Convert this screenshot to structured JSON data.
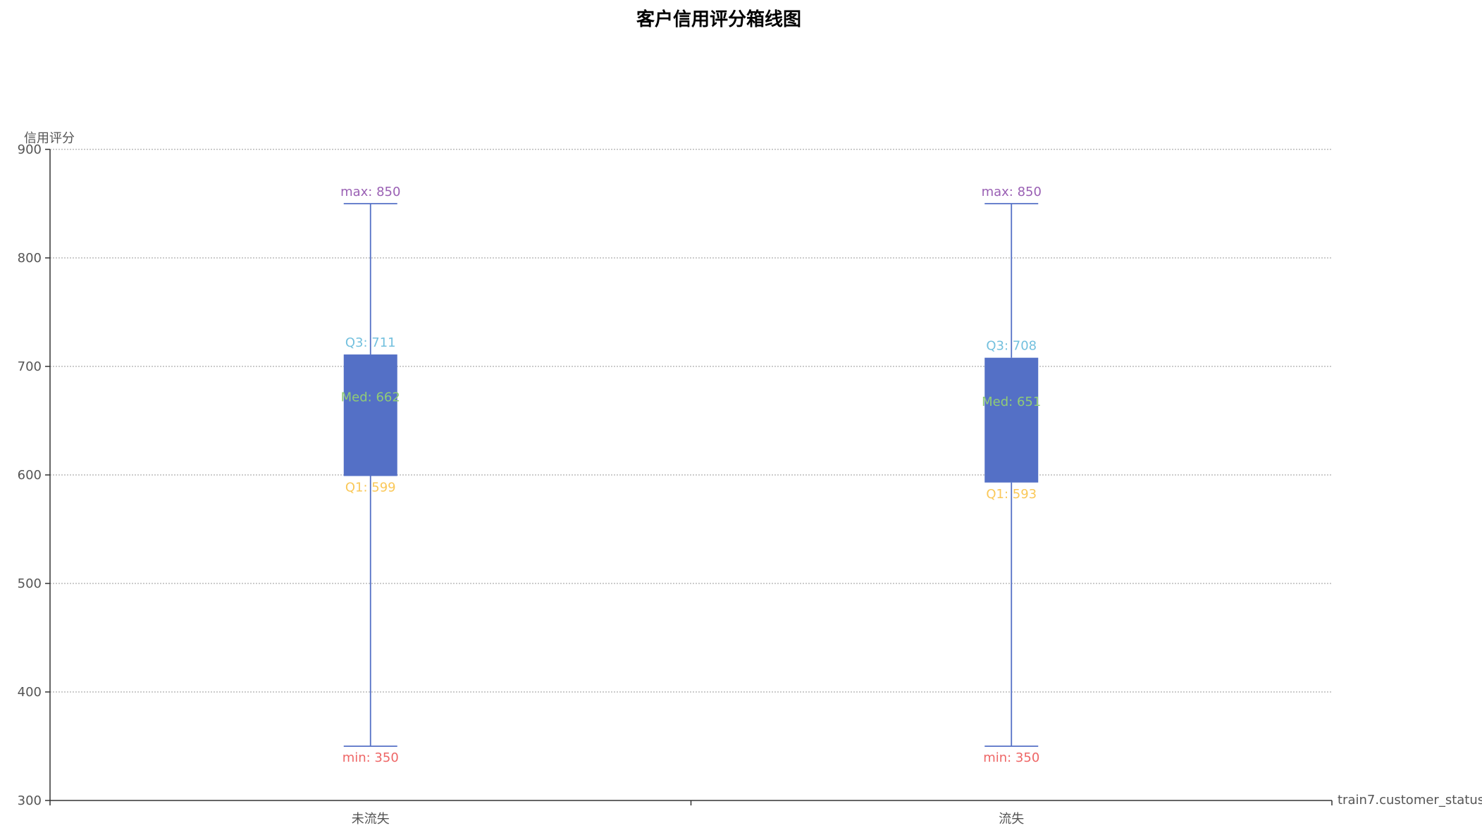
{
  "chart_data": {
    "type": "boxplot",
    "title": "客户信用评分箱线图",
    "ylabel": "信用评分",
    "xlabel": "train7.customer_status",
    "ylim": [
      300,
      900
    ],
    "yticks": [
      300,
      400,
      500,
      600,
      700,
      800,
      900
    ],
    "grid": true,
    "categories": [
      "未流失",
      "流失"
    ],
    "boxes": [
      {
        "category": "未流失",
        "min": 350,
        "q1": 599,
        "median": 662,
        "q3": 711,
        "max": 850,
        "labels": {
          "max": "max: 850",
          "q3": "Q3: 711",
          "median": "Med: 662",
          "q1": "Q1: 599",
          "min": "min: 350"
        }
      },
      {
        "category": "流失",
        "min": 350,
        "q1": 593,
        "median": 651,
        "q3": 708,
        "max": 850,
        "labels": {
          "max": "max: 850",
          "q3": "Q3: 708",
          "median": "Med: 651",
          "q1": "Q1: 593",
          "min": "min: 350"
        }
      }
    ],
    "colors": {
      "box": "#5470c6",
      "max_label": "#9a60b4",
      "q3_label": "#73c0de",
      "median_label": "#91cc75",
      "q1_label": "#fac858",
      "min_label": "#ee6666"
    }
  }
}
